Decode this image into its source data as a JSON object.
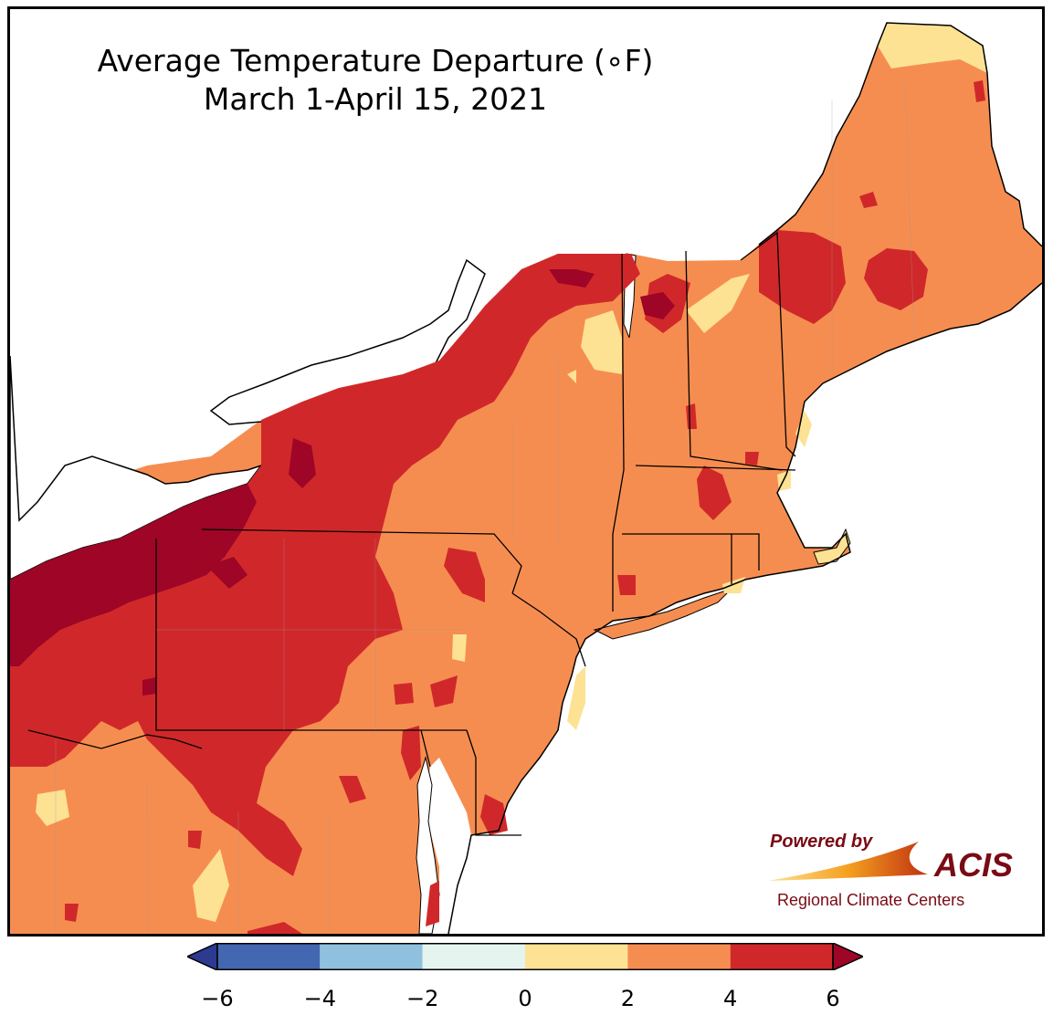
{
  "title": {
    "line1": "Average Temperature Departure (∘F)",
    "line2": "March 1-April 15, 2021"
  },
  "logo": {
    "powered_by": "Powered by",
    "acis": "ACIS",
    "subtitle": "Regional Climate Centers"
  },
  "colorbar": {
    "bins": [
      {
        "from": -6,
        "to": -4,
        "color": "#4367b0"
      },
      {
        "from": -4,
        "to": -2,
        "color": "#8fc1de"
      },
      {
        "from": -2,
        "to": 0,
        "color": "#e5f4ee"
      },
      {
        "from": 0,
        "to": 2,
        "color": "#fde294"
      },
      {
        "from": 2,
        "to": 4,
        "color": "#f68d50"
      },
      {
        "from": 4,
        "to": 6,
        "color": "#d0282a"
      }
    ],
    "under_color": "#2c3b90",
    "over_color": "#9e0526",
    "ticks": [
      "−6",
      "−4",
      "−2",
      "0",
      "2",
      "4",
      "6"
    ]
  },
  "map": {
    "water_color": "#ffffff",
    "land_colors": {
      "range_0_2": "#fde294",
      "range_2_4": "#f68d50",
      "range_4_6": "#d0282a",
      "above_6": "#9e0526"
    }
  }
}
